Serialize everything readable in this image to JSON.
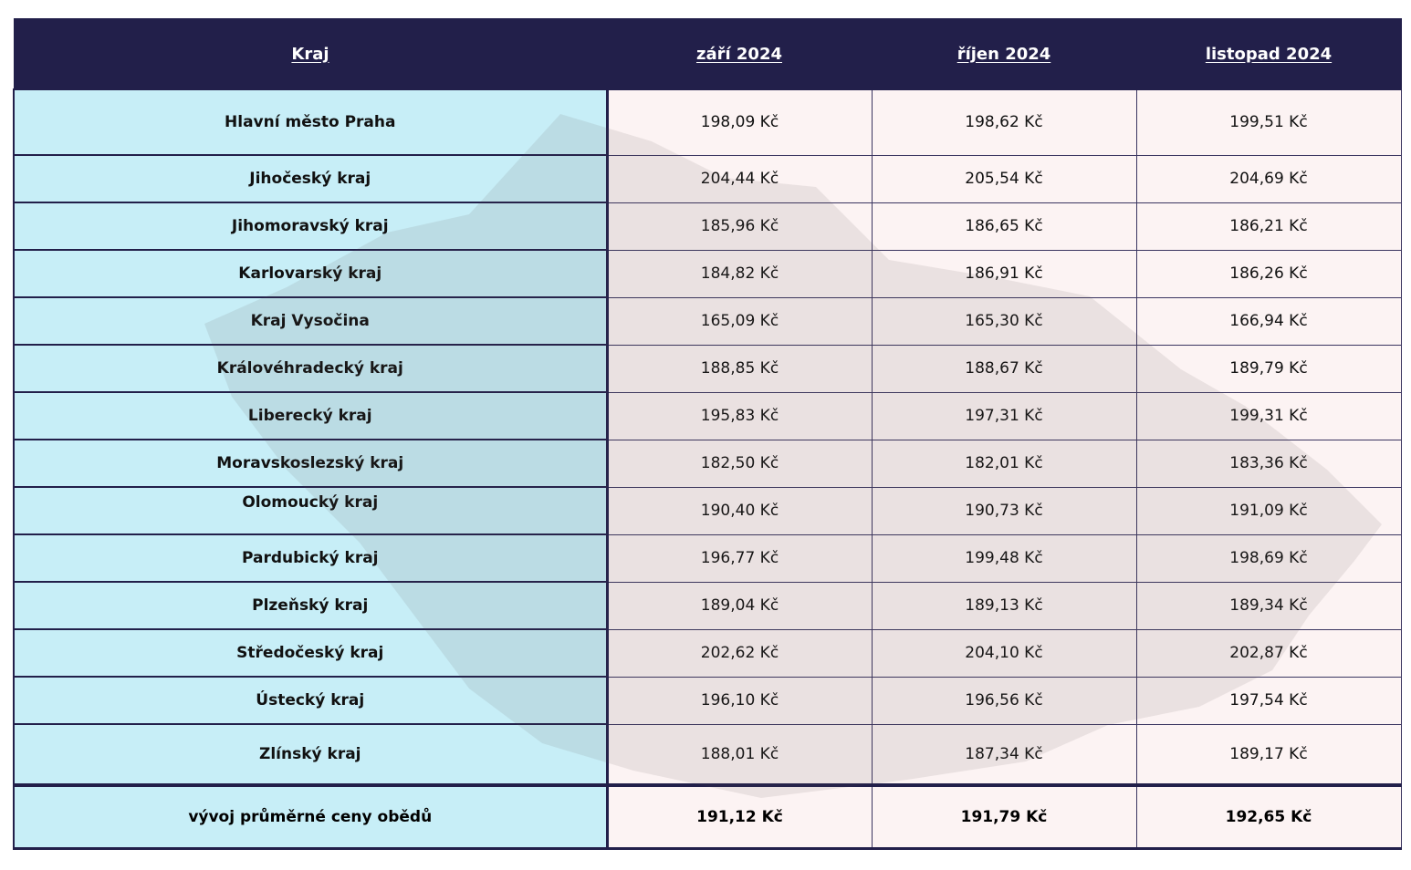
{
  "table": {
    "headers": [
      "Kraj",
      "září 2024",
      "říjen 2024",
      "listopad 2024"
    ],
    "rows": [
      {
        "region": "Hlavní město Praha",
        "values": [
          "198,09 Kč",
          "198,62 Kč",
          "199,51 Kč"
        ]
      },
      {
        "region": "Jihočeský kraj",
        "values": [
          "204,44 Kč",
          "205,54 Kč",
          "204,69 Kč"
        ]
      },
      {
        "region": "Jihomoravský kraj",
        "values": [
          "185,96 Kč",
          "186,65 Kč",
          "186,21 Kč"
        ]
      },
      {
        "region": "Karlovarský kraj",
        "values": [
          "184,82 Kč",
          "186,91 Kč",
          "186,26 Kč"
        ]
      },
      {
        "region": "Kraj Vysočina",
        "values": [
          "165,09 Kč",
          "165,30 Kč",
          "166,94 Kč"
        ]
      },
      {
        "region": "Královéhradecký kraj",
        "values": [
          "188,85 Kč",
          "188,67 Kč",
          "189,79 Kč"
        ]
      },
      {
        "region": "Liberecký kraj",
        "values": [
          "195,83 Kč",
          "197,31 Kč",
          "199,31 Kč"
        ]
      },
      {
        "region": "Moravskoslezský kraj",
        "values": [
          "182,50 Kč",
          "182,01 Kč",
          "183,36 Kč"
        ]
      },
      {
        "region": "Olomoucký kraj",
        "values": [
          "190,40 Kč",
          "190,73 Kč",
          "191,09 Kč"
        ]
      },
      {
        "region": "Pardubický kraj",
        "values": [
          "196,77 Kč",
          "199,48 Kč",
          "198,69 Kč"
        ]
      },
      {
        "region": "Plzeňský kraj",
        "values": [
          "189,04 Kč",
          "189,13 Kč",
          "189,34 Kč"
        ]
      },
      {
        "region": "Středočeský kraj",
        "values": [
          "202,62 Kč",
          "204,10 Kč",
          "202,87 Kč"
        ]
      },
      {
        "region": "Ústecký kraj",
        "values": [
          "196,10 Kč",
          "196,56 Kč",
          "197,54 Kč"
        ]
      },
      {
        "region": "Zlínský kraj",
        "values": [
          "188,01 Kč",
          "187,34 Kč",
          "189,17 Kč"
        ]
      }
    ],
    "footer": {
      "label": "vývoj průměrné ceny obědů",
      "values": [
        "191,12 Kč",
        "191,79 Kč",
        "192,65 Kč"
      ]
    }
  },
  "colors": {
    "header_bg": "#221f4a",
    "region_bg": "#c7eef7",
    "value_bg": "#fcf3f3"
  },
  "background_icon": "czech-republic-map-icon"
}
